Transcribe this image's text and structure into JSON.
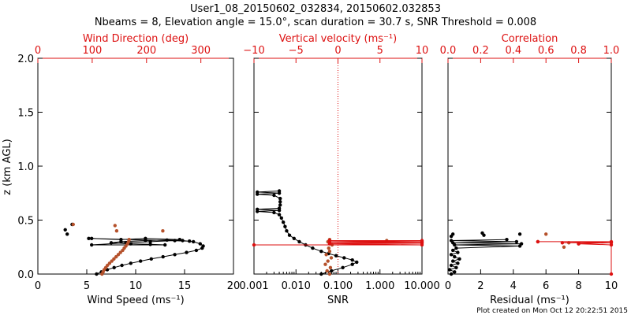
{
  "title_line1": "User1_08_20150602_032834, 20150602.032853",
  "title_line2": "Nbeams = 8, Elevation angle = 15.0°, scan duration = 30.7 s, SNR Threshold = 0.008",
  "credit": "Plot created on Mon Oct 12 20:22:51 2015",
  "y_axis": {
    "label": "z (km AGL)",
    "range": [
      0.0,
      2.0
    ],
    "ticks": [
      "0.0",
      "0.5",
      "1.0",
      "1.5",
      "2.0"
    ]
  },
  "colors": {
    "black": "#000000",
    "red": "#dd1111",
    "brown": "#b5512b"
  },
  "chart_data": [
    {
      "type": "scatter",
      "panel": "wind",
      "bottom_axis": {
        "label": "Wind Speed (ms⁻¹)",
        "range": [
          0,
          20
        ],
        "ticks": [
          "0",
          "5",
          "10",
          "15",
          "20"
        ]
      },
      "top_axis": {
        "label": "Wind Direction (deg)",
        "range": [
          0,
          360
        ],
        "ticks": [
          "0",
          "100",
          "200",
          "300"
        ]
      },
      "series": [
        {
          "role": "wind-speed",
          "axis": "bottom",
          "color": "#000000",
          "connected": true,
          "points": [
            [
              6.0,
              0.0
            ],
            [
              6.5,
              0.02
            ],
            [
              7.1,
              0.04
            ],
            [
              7.8,
              0.06
            ],
            [
              8.6,
              0.08
            ],
            [
              9.5,
              0.1
            ],
            [
              10.5,
              0.12
            ],
            [
              11.6,
              0.14
            ],
            [
              12.8,
              0.16
            ],
            [
              14.0,
              0.18
            ],
            [
              15.2,
              0.2
            ],
            [
              16.2,
              0.22
            ],
            [
              16.8,
              0.24
            ],
            [
              16.9,
              0.26
            ],
            [
              16.6,
              0.28
            ],
            [
              15.9,
              0.3
            ],
            [
              14.8,
              0.31
            ],
            [
              13.2,
              0.315
            ],
            [
              11.0,
              0.31
            ],
            [
              8.5,
              0.3
            ],
            [
              7.5,
              0.29
            ],
            [
              9.5,
              0.28
            ],
            [
              11.5,
              0.275
            ],
            [
              13.0,
              0.27
            ],
            [
              5.5,
              0.27
            ],
            [
              9.0,
              0.29
            ],
            [
              11.5,
              0.3
            ],
            [
              14.0,
              0.31
            ],
            [
              15.5,
              0.305
            ],
            [
              5.5,
              0.33
            ],
            [
              8.5,
              0.32
            ],
            [
              11.0,
              0.33
            ],
            [
              14.5,
              0.32
            ]
          ]
        },
        {
          "role": "wind-speed-isolated",
          "axis": "bottom",
          "color": "#000000",
          "connected": false,
          "points": [
            [
              2.8,
              0.41
            ],
            [
              3.0,
              0.37
            ],
            [
              3.5,
              0.46
            ],
            [
              5.2,
              0.33
            ]
          ]
        },
        {
          "role": "wind-direction",
          "axis": "top",
          "color": "#b5512b",
          "connected": false,
          "points": [
            [
              118,
              0.0
            ],
            [
              120,
              0.02
            ],
            [
              122,
              0.04
            ],
            [
              125,
              0.06
            ],
            [
              128,
              0.08
            ],
            [
              132,
              0.1
            ],
            [
              136,
              0.12
            ],
            [
              140,
              0.14
            ],
            [
              144,
              0.16
            ],
            [
              148,
              0.18
            ],
            [
              152,
              0.2
            ],
            [
              156,
              0.22
            ],
            [
              159,
              0.24
            ],
            [
              162,
              0.26
            ],
            [
              165,
              0.28
            ],
            [
              167,
              0.3
            ],
            [
              168,
              0.32
            ],
            [
              65,
              0.46
            ],
            [
              145,
              0.4
            ],
            [
              230,
              0.4
            ],
            [
              142,
              0.45
            ]
          ]
        }
      ]
    },
    {
      "type": "scatter",
      "panel": "snr",
      "bottom_axis": {
        "label": "SNR",
        "scale": "log",
        "range": [
          0.001,
          10.0
        ],
        "ticks": [
          "0.001",
          "0.010",
          "0.100",
          "1.000",
          "10.000"
        ]
      },
      "top_axis": {
        "label": "Vertical velocity (ms⁻¹)",
        "range": [
          -10,
          10
        ],
        "ticks": [
          "−10",
          "−5",
          "0",
          "5",
          "10"
        ]
      },
      "series": [
        {
          "role": "snr",
          "axis": "bottom",
          "color": "#000000",
          "connected": true,
          "points": [
            [
              0.04,
              0.0
            ],
            [
              0.07,
              0.03
            ],
            [
              0.13,
              0.06
            ],
            [
              0.22,
              0.09
            ],
            [
              0.28,
              0.11
            ],
            [
              0.22,
              0.13
            ],
            [
              0.14,
              0.15
            ],
            [
              0.09,
              0.17
            ],
            [
              0.06,
              0.19
            ],
            [
              0.04,
              0.21
            ],
            [
              0.025,
              0.24
            ],
            [
              0.017,
              0.27
            ],
            [
              0.012,
              0.3
            ],
            [
              0.009,
              0.33
            ],
            [
              0.007,
              0.36
            ],
            [
              0.006,
              0.4
            ],
            [
              0.0055,
              0.44
            ],
            [
              0.005,
              0.48
            ],
            [
              0.0045,
              0.52
            ],
            [
              0.004,
              0.55
            ],
            [
              0.003,
              0.57
            ],
            [
              0.0012,
              0.58
            ],
            [
              0.004,
              0.59
            ],
            [
              0.0012,
              0.6
            ],
            [
              0.004,
              0.61
            ],
            [
              0.0042,
              0.64
            ],
            [
              0.0042,
              0.67
            ],
            [
              0.0042,
              0.7
            ],
            [
              0.003,
              0.73
            ],
            [
              0.0012,
              0.74
            ],
            [
              0.004,
              0.75
            ],
            [
              0.0012,
              0.76
            ],
            [
              0.004,
              0.77
            ]
          ]
        },
        {
          "role": "vertical-velocity",
          "axis": "top",
          "color": "#b5512b",
          "connected": false,
          "points": [
            [
              -1.0,
              0.0
            ],
            [
              -1.3,
              0.03
            ],
            [
              -0.9,
              0.06
            ],
            [
              -1.5,
              0.09
            ],
            [
              -1.2,
              0.12
            ],
            [
              -0.8,
              0.15
            ],
            [
              -1.4,
              0.18
            ],
            [
              -1.0,
              0.21
            ],
            [
              -1.1,
              0.24
            ],
            [
              -0.7,
              0.27
            ],
            [
              -1.2,
              0.3
            ],
            [
              -1.0,
              0.32
            ],
            [
              5.8,
              0.31
            ]
          ]
        },
        {
          "role": "vertical-velocity-spread",
          "axis": "top",
          "color": "#dd1111",
          "connected": true,
          "points": [
            [
              -10.0,
              0.27
            ],
            [
              10.0,
              0.27
            ],
            [
              -1.0,
              0.28
            ],
            [
              10.0,
              0.285
            ],
            [
              -1.0,
              0.29
            ],
            [
              10.0,
              0.295
            ],
            [
              -1.0,
              0.3
            ],
            [
              10.0,
              0.3
            ],
            [
              -1.0,
              0.31
            ],
            [
              10.0,
              0.31
            ]
          ]
        }
      ],
      "reference_line": {
        "axis": "top",
        "value": 0
      }
    },
    {
      "type": "scatter",
      "panel": "residual",
      "bottom_axis": {
        "label": "Residual (ms⁻¹)",
        "range": [
          0,
          10
        ],
        "ticks": [
          "0",
          "2",
          "4",
          "6",
          "8",
          "10"
        ]
      },
      "top_axis": {
        "label": "Correlation",
        "range": [
          0.0,
          1.0
        ],
        "ticks": [
          "0.0",
          "0.2",
          "0.4",
          "0.6",
          "0.8",
          "1.0"
        ]
      },
      "series": [
        {
          "role": "residual",
          "axis": "bottom",
          "color": "#000000",
          "connected": true,
          "points": [
            [
              0.2,
              0.0
            ],
            [
              0.4,
              0.02
            ],
            [
              0.1,
              0.04
            ],
            [
              0.5,
              0.06
            ],
            [
              0.2,
              0.08
            ],
            [
              0.6,
              0.1
            ],
            [
              0.3,
              0.12
            ],
            [
              0.7,
              0.14
            ],
            [
              0.4,
              0.16
            ],
            [
              0.2,
              0.18
            ],
            [
              0.6,
              0.2
            ],
            [
              0.3,
              0.22
            ],
            [
              0.5,
              0.24
            ],
            [
              4.4,
              0.26
            ],
            [
              0.4,
              0.27
            ],
            [
              4.5,
              0.28
            ],
            [
              0.3,
              0.29
            ],
            [
              4.2,
              0.3
            ],
            [
              0.2,
              0.31
            ],
            [
              3.6,
              0.32
            ]
          ]
        },
        {
          "role": "residual-isolated",
          "axis": "bottom",
          "color": "#000000",
          "connected": false,
          "points": [
            [
              0.2,
              0.35
            ],
            [
              0.3,
              0.37
            ],
            [
              2.2,
              0.36
            ],
            [
              4.4,
              0.37
            ],
            [
              2.1,
              0.38
            ]
          ]
        },
        {
          "role": "correlation",
          "axis": "top",
          "color": "#b5512b",
          "connected": false,
          "points": [
            [
              0.55,
              0.3
            ],
            [
              0.6,
              0.37
            ],
            [
              0.71,
              0.25
            ],
            [
              0.74,
              0.29
            ],
            [
              0.8,
              0.28
            ]
          ]
        },
        {
          "role": "correlation-spread",
          "axis": "top",
          "color": "#dd1111",
          "connected": true,
          "points": [
            [
              0.55,
              0.3
            ],
            [
              1.0,
              0.3
            ],
            [
              0.7,
              0.29
            ],
            [
              1.0,
              0.29
            ],
            [
              0.8,
              0.28
            ],
            [
              1.0,
              0.27
            ],
            [
              1.0,
              0.0
            ]
          ]
        }
      ]
    }
  ]
}
